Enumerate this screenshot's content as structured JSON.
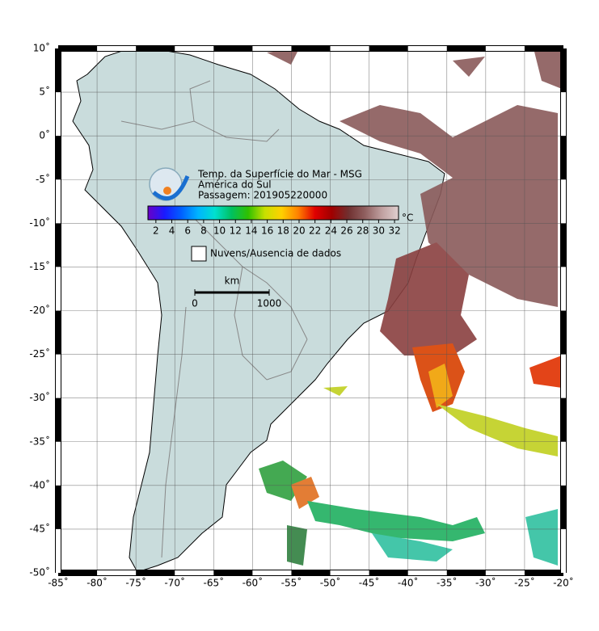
{
  "map": {
    "title_lines": [
      "Temp. da Superfície do Mar - MSG",
      "América do Sul",
      "Passagem: 201905220000"
    ],
    "lon_ticks": [
      {
        "value": -85,
        "label": "-85˚"
      },
      {
        "value": -80,
        "label": "-80˚"
      },
      {
        "value": -75,
        "label": "-75˚"
      },
      {
        "value": -70,
        "label": "-70˚"
      },
      {
        "value": -65,
        "label": "-65˚"
      },
      {
        "value": -60,
        "label": "-60˚"
      },
      {
        "value": -55,
        "label": "-55˚"
      },
      {
        "value": -50,
        "label": "-50˚"
      },
      {
        "value": -45,
        "label": "-45˚"
      },
      {
        "value": -40,
        "label": "-40˚"
      },
      {
        "value": -35,
        "label": "-35˚"
      },
      {
        "value": -30,
        "label": "-30˚"
      },
      {
        "value": -25,
        "label": "-25˚"
      },
      {
        "value": -20,
        "label": "-20˚"
      }
    ],
    "lat_ticks": [
      {
        "value": 10,
        "label": "10˚"
      },
      {
        "value": 5,
        "label": "5˚"
      },
      {
        "value": 0,
        "label": "0˚"
      },
      {
        "value": -5,
        "label": "-5˚"
      },
      {
        "value": -10,
        "label": "-10˚"
      },
      {
        "value": -15,
        "label": "-15˚"
      },
      {
        "value": -20,
        "label": "-20˚"
      },
      {
        "value": -25,
        "label": "-25˚"
      },
      {
        "value": -30,
        "label": "-30˚"
      },
      {
        "value": -35,
        "label": "-35˚"
      },
      {
        "value": -40,
        "label": "-40˚"
      },
      {
        "value": -45,
        "label": "-45˚"
      },
      {
        "value": -50,
        "label": "-50˚"
      }
    ],
    "colorbar": {
      "unit": "°C",
      "lim": [
        1,
        32.5
      ],
      "ticks": [
        2,
        4,
        6,
        8,
        10,
        12,
        14,
        16,
        18,
        20,
        22,
        24,
        26,
        28,
        30,
        32
      ],
      "colors": [
        "#6a00c8",
        "#1a1aff",
        "#0060ff",
        "#00b4ff",
        "#00e0d0",
        "#00c060",
        "#30c000",
        "#c8e000",
        "#ffd000",
        "#ff8000",
        "#e00000",
        "#a00000",
        "#703030",
        "#906060",
        "#c0a0a0",
        "#e0d0d0"
      ]
    },
    "legend": "Nuvens/Ausencia de dados",
    "scale": {
      "unit": "km",
      "ticks": [
        0,
        1000
      ]
    }
  }
}
